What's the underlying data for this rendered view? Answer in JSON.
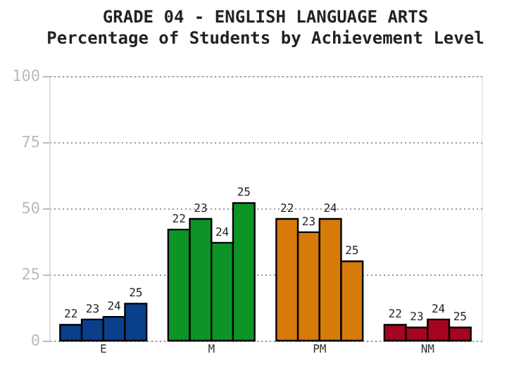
{
  "chart_data": {
    "type": "bar",
    "title": "GRADE 04 - ENGLISH LANGUAGE ARTS",
    "subtitle": "Percentage of Students by Achievement Level",
    "categories": [
      "E",
      "M",
      "PM",
      "NM"
    ],
    "series": [
      {
        "name": "22",
        "colors": [
          "#0a3f8c",
          "#0d9427",
          "#d67b09",
          "#a5051f"
        ],
        "values": [
          6,
          42,
          46,
          6
        ]
      },
      {
        "name": "23",
        "colors": [
          "#0a3f8c",
          "#0d9427",
          "#d67b09",
          "#a5051f"
        ],
        "values": [
          8,
          46,
          41,
          5
        ]
      },
      {
        "name": "24",
        "colors": [
          "#0a3f8c",
          "#0d9427",
          "#d67b09",
          "#a5051f"
        ],
        "values": [
          9,
          37,
          46,
          8
        ]
      },
      {
        "name": "25",
        "colors": [
          "#0a3f8c",
          "#0d9427",
          "#d67b09",
          "#a5051f"
        ],
        "values": [
          14,
          52,
          30,
          5
        ]
      }
    ],
    "ylim": [
      0,
      100
    ],
    "yticks": [
      0,
      25,
      50,
      75,
      100
    ],
    "grid": "y",
    "legend": false
  }
}
